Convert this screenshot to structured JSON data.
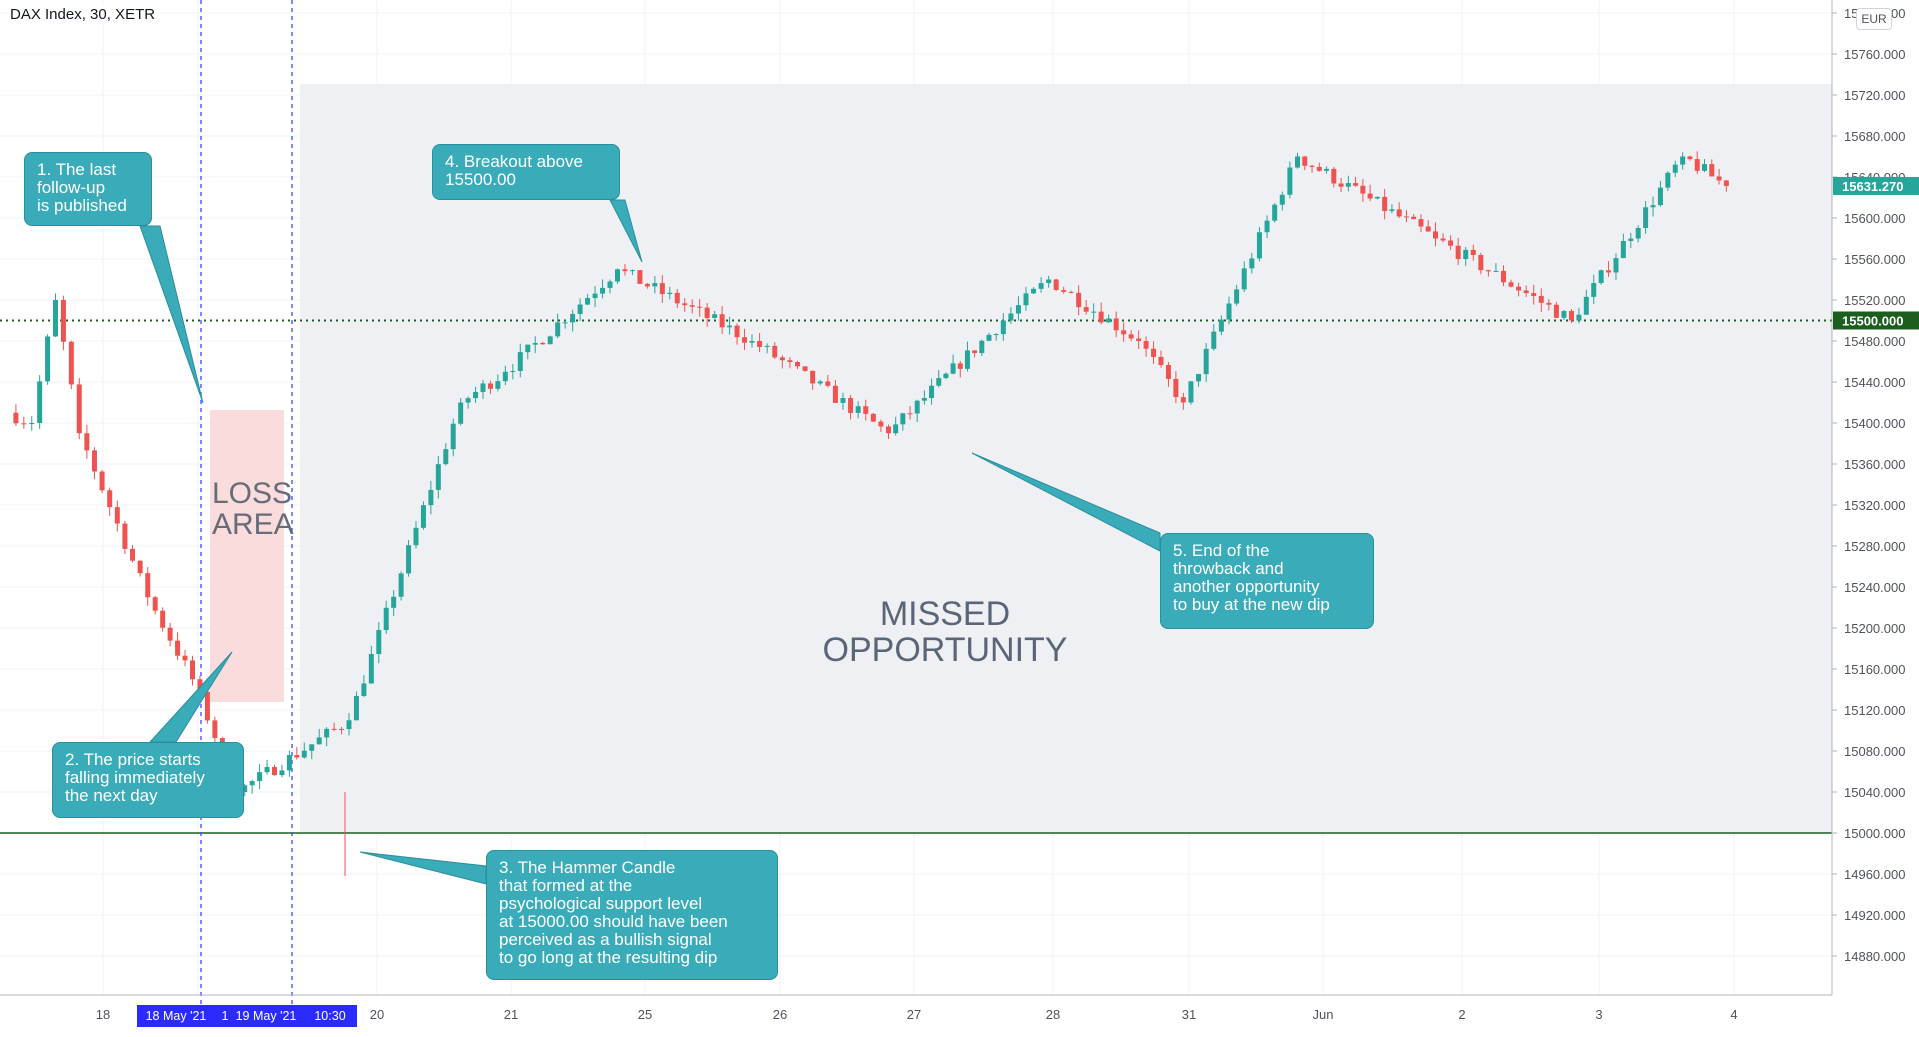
{
  "header": {
    "symbol": "DAX Index, 30, XETR",
    "currency": "EUR"
  },
  "price_axis": {
    "ticks": [
      "15800.000",
      "15760.000",
      "15720.000",
      "15680.000",
      "15640.000",
      "15600.000",
      "15560.000",
      "15520.000",
      "15480.000",
      "15440.000",
      "15400.000",
      "15360.000",
      "15320.000",
      "15280.000",
      "15240.000",
      "15200.000",
      "15160.000",
      "15120.000",
      "15080.000",
      "15040.000",
      "15000.000",
      "14960.000",
      "14920.000",
      "14880.000"
    ],
    "current_price": "15631.270",
    "support_price": "15500.000"
  },
  "time_axis": {
    "labels": [
      "18",
      "20",
      "21",
      "25",
      "26",
      "27",
      "28",
      "31",
      "Jun",
      "2",
      "3",
      "4"
    ],
    "selection_labels": [
      "18 May '21",
      "1",
      "19 May '21",
      "10:30"
    ]
  },
  "annotations": {
    "callout_1": "1. The last\nfollow-up\nis published",
    "callout_2": "2. The price starts\nfalling immediately\nthe next day",
    "callout_3": "3. The Hammer Candle\nthat formed at the\npsychological support level\nat 15000.00 should have been\nperceived as a bullish signal\nto go long at the resulting dip",
    "callout_4": "4. Breakout above\n15500.00",
    "callout_5": "5. End of the\nthrowback and\nanother opportunity\nto buy at the new dip",
    "loss_area": "LOSS\nAREA",
    "missed_opportunity": "MISSED\nOPPORTUNITY"
  },
  "colors": {
    "up": "#26a69a",
    "down": "#ef5350",
    "current_price_tag": "#26a69a",
    "support_tag": "#1b5e20",
    "callout": "#3aabb8",
    "loss_zone": "#fbdcdc",
    "missed_zone": "#eef0f4",
    "marker_line": "#3c49ff"
  },
  "chart_data": {
    "type": "candlestick",
    "title": "DAX Index, 30, XETR",
    "currency": "EUR",
    "ylim": [
      14840,
      15800
    ],
    "yticks": [
      15800,
      15760,
      15720,
      15680,
      15640,
      15600,
      15560,
      15520,
      15480,
      15440,
      15400,
      15360,
      15320,
      15280,
      15240,
      15200,
      15160,
      15120,
      15080,
      15040,
      15000,
      14960,
      14920,
      14880
    ],
    "last_price": 15631.27,
    "horizontal_levels": [
      {
        "value": 15500,
        "style": "dotted"
      },
      {
        "value": 15000,
        "style": "solid"
      }
    ],
    "session_labels": [
      "18",
      "19",
      "20",
      "21",
      "25",
      "26",
      "27",
      "28",
      "31",
      "Jun",
      "2",
      "3",
      "4"
    ],
    "approx_path_keypoints": [
      {
        "session": "18",
        "close": 15400
      },
      {
        "session": "18",
        "close": 15520
      },
      {
        "session": "18",
        "close": 15390
      },
      {
        "session": "19",
        "close": 15230
      },
      {
        "session": "19",
        "close": 15150
      },
      {
        "session": "19",
        "close": 15040
      },
      {
        "session": "20",
        "close": 15110
      },
      {
        "session": "21",
        "close": 15420
      },
      {
        "session": "21",
        "close": 15450
      },
      {
        "session": "25",
        "close": 15550
      },
      {
        "session": "26",
        "close": 15480
      },
      {
        "session": "27",
        "close": 15390
      },
      {
        "session": "28",
        "close": 15500
      },
      {
        "session": "28",
        "close": 15540
      },
      {
        "session": "31",
        "close": 15480
      },
      {
        "session": "31",
        "close": 15420
      },
      {
        "session": "Jun",
        "close": 15660
      },
      {
        "session": "2",
        "close": 15580
      },
      {
        "session": "3",
        "close": 15500
      },
      {
        "session": "4",
        "close": 15660
      },
      {
        "session": "4",
        "close": 15631.27
      }
    ]
  }
}
